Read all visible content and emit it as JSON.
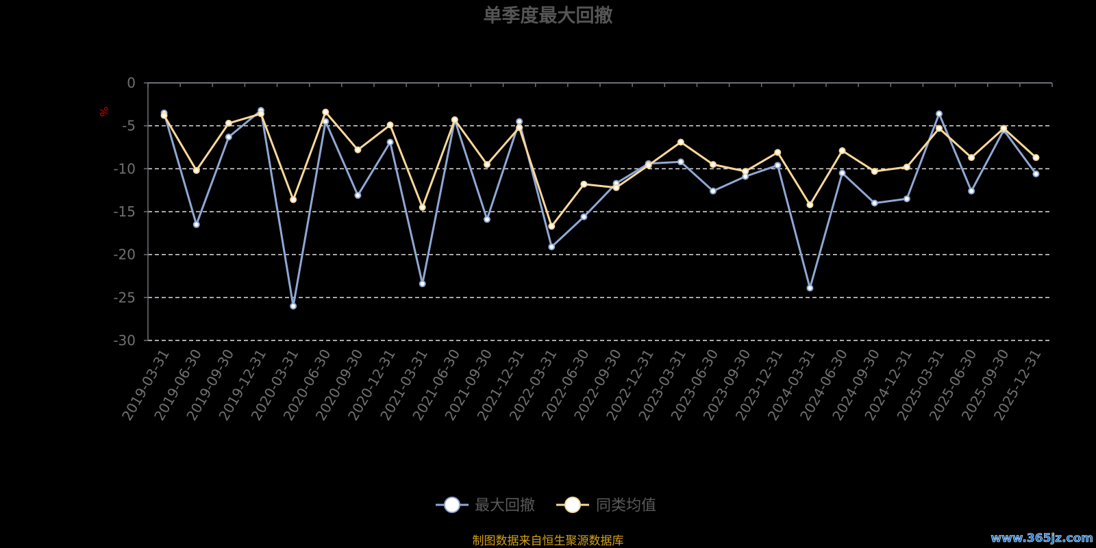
{
  "chart_data": {
    "type": "line",
    "title": "单季度最大回撤",
    "unit": "%",
    "ylim": [
      -30,
      0
    ],
    "yticks": [
      0,
      -5,
      -10,
      -15,
      -20,
      -25,
      -30
    ],
    "grid": true,
    "legend_position": "bottom",
    "categories": [
      "2019-03-31",
      "2019-06-30",
      "2019-09-30",
      "2019-12-31",
      "2020-03-31",
      "2020-06-30",
      "2020-09-30",
      "2020-12-31",
      "2021-03-31",
      "2021-06-30",
      "2021-09-30",
      "2021-12-31",
      "2022-03-31",
      "2022-06-30",
      "2022-09-30",
      "2022-12-31",
      "2023-03-31",
      "2023-06-30",
      "2023-09-30",
      "2023-12-31",
      "2024-03-31",
      "2024-06-30",
      "2024-09-30",
      "2024-12-31",
      "2025-03-31",
      "2025-06-30",
      "2025-09-30",
      "2025-12-31"
    ],
    "series": [
      {
        "name": "最大回撤",
        "color": "#8fa8d4",
        "values": [
          -3.5,
          -16.5,
          -6.3,
          -3.2,
          -26.0,
          -4.5,
          -13.1,
          -6.9,
          -23.4,
          -4.3,
          -15.9,
          -4.5,
          -19.1,
          -15.6,
          -11.7,
          -9.4,
          -9.2,
          -12.6,
          -10.9,
          -9.6,
          -23.9,
          -10.5,
          -14.0,
          -13.5,
          -3.6,
          -12.6,
          -5.5,
          -10.6
        ]
      },
      {
        "name": "同类均值",
        "color": "#fcd899",
        "values": [
          -3.8,
          -10.2,
          -4.7,
          -3.6,
          -13.6,
          -3.4,
          -7.8,
          -4.9,
          -14.5,
          -4.3,
          -9.5,
          -5.2,
          -16.7,
          -11.8,
          -12.2,
          -9.6,
          -6.9,
          -9.5,
          -10.3,
          -8.1,
          -14.2,
          -7.9,
          -10.3,
          -9.8,
          -5.3,
          -8.7,
          -5.3,
          -8.7
        ]
      }
    ]
  },
  "source_note": "制图数据来自恒生聚源数据库",
  "watermark": "www.365jz.com"
}
